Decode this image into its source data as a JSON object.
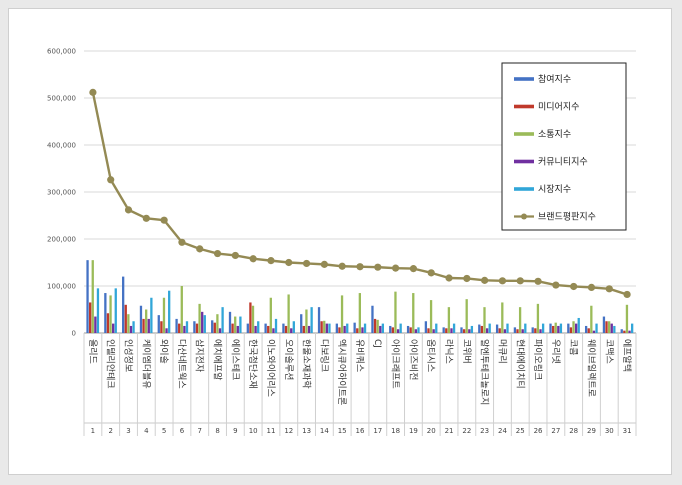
{
  "chart_data": {
    "type": "bar",
    "y_ticks": [
      "0",
      "100,000",
      "200,000",
      "300,000",
      "400,000",
      "500,000",
      "600,000"
    ],
    "ylim": [
      0,
      600000
    ],
    "legend_position": "top-right",
    "grid": true,
    "categories": [
      "올리드",
      "인텔리안테크",
      "인성정보",
      "케이엠더블유",
      "와이솔",
      "다산네트웍스",
      "삼지전자",
      "에치에프알",
      "에이스테크",
      "한국첨단소재",
      "이노와이어리스",
      "오이솔루션",
      "한울소재과학",
      "다보링크",
      "엑시큐어하이트론",
      "유비쿼스",
      "CJ",
      "아이크래프트",
      "아이즈비전",
      "옵티시스",
      "라닉스",
      "코위버",
      "알엔투테크놀로지",
      "머큐리",
      "현대에이치티",
      "파이오링크",
      "우리넷",
      "코콤",
      "웨이브일렉트로",
      "코맥스",
      "에프알텍"
    ],
    "index_labels": [
      "1",
      "2",
      "3",
      "4",
      "5",
      "6",
      "7",
      "8",
      "9",
      "10",
      "11",
      "12",
      "13",
      "14",
      "15",
      "16",
      "17",
      "18",
      "19",
      "20",
      "21",
      "22",
      "23",
      "24",
      "25",
      "26",
      "27",
      "28",
      "29",
      "30",
      "31"
    ],
    "series": [
      {
        "name": "참여지수",
        "color": "#4472c4",
        "values": [
          155000,
          85000,
          120000,
          58000,
          38000,
          30000,
          25000,
          27000,
          45000,
          20000,
          20000,
          20000,
          40000,
          55000,
          20000,
          22000,
          58000,
          15000,
          15000,
          25000,
          12000,
          12000,
          18000,
          18000,
          12000,
          12000,
          20000,
          20000,
          15000,
          35000,
          8000
        ]
      },
      {
        "name": "미디어지수",
        "color": "#c0392b",
        "values": [
          65000,
          42000,
          60000,
          30000,
          25000,
          20000,
          20000,
          22000,
          20000,
          65000,
          15000,
          15000,
          15000,
          25000,
          12000,
          10000,
          30000,
          12000,
          12000,
          10000,
          10000,
          8000,
          15000,
          10000,
          8000,
          10000,
          15000,
          12000,
          10000,
          25000,
          5000
        ]
      },
      {
        "name": "소통지수",
        "color": "#9bbb59",
        "values": [
          155000,
          80000,
          40000,
          50000,
          75000,
          100000,
          62000,
          40000,
          35000,
          58000,
          75000,
          82000,
          50000,
          26000,
          80000,
          85000,
          28000,
          88000,
          85000,
          70000,
          55000,
          72000,
          55000,
          65000,
          55000,
          62000,
          22000,
          25000,
          58000,
          25000,
          60000
        ]
      },
      {
        "name": "커뮤니티지수",
        "color": "#7030a0",
        "values": [
          35000,
          20000,
          15000,
          30000,
          10000,
          15000,
          45000,
          10000,
          15000,
          15000,
          10000,
          10000,
          15000,
          20000,
          15000,
          12000,
          15000,
          8000,
          8000,
          8000,
          10000,
          8000,
          10000,
          8000,
          8000,
          8000,
          15000,
          20000,
          5000,
          20000,
          5000
        ]
      },
      {
        "name": "시장지수",
        "color": "#31a6d8",
        "values": [
          95000,
          95000,
          25000,
          75000,
          90000,
          25000,
          38000,
          55000,
          35000,
          25000,
          30000,
          25000,
          55000,
          20000,
          20000,
          20000,
          20000,
          20000,
          12000,
          20000,
          20000,
          15000,
          20000,
          20000,
          20000,
          20000,
          20000,
          32000,
          20000,
          15000,
          20000
        ]
      },
      {
        "name": "브랜드평판지수",
        "color": "#948a54",
        "type": "line",
        "values": [
          512000,
          326000,
          262000,
          244000,
          240000,
          193000,
          179000,
          169000,
          165000,
          158000,
          154000,
          150000,
          148000,
          146000,
          142000,
          141000,
          140000,
          138000,
          137000,
          128000,
          117000,
          116000,
          112000,
          111000,
          111000,
          110000,
          102000,
          99000,
          97000,
          94000,
          82000
        ]
      }
    ]
  }
}
